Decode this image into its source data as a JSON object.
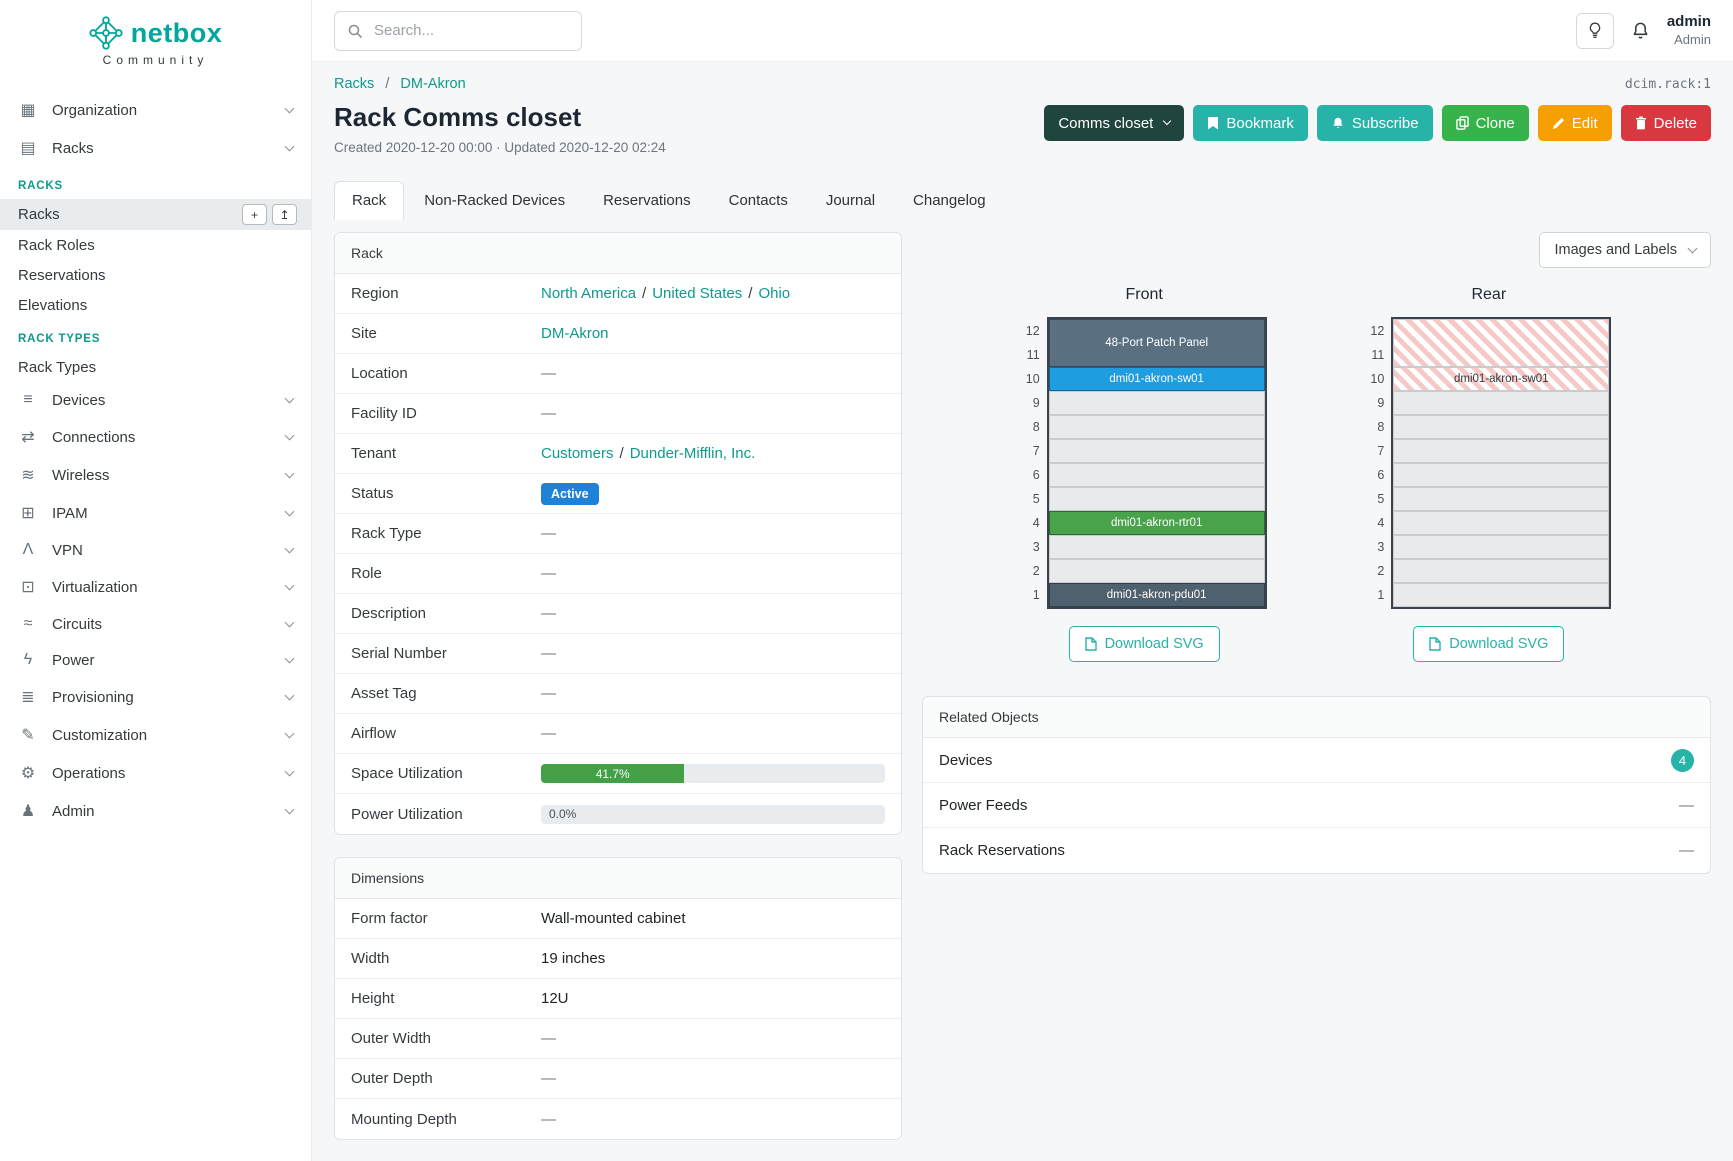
{
  "ui": {
    "slash": "/"
  },
  "colors": {
    "brand": "#00a79b",
    "link": "#0e9a8d",
    "btn-teal": "#27b3a7",
    "btn-green": "#38b24a",
    "btn-orange": "#f59f00",
    "btn-red": "#d8383f",
    "btn-dark": "#20453f",
    "badge-blue": "#1d82d8",
    "progress-green": "#43a047",
    "device-blue": "#1e9de0",
    "device-green": "#48a34b",
    "device-slate": "#5a7080",
    "device-darkslate": "#4f616e",
    "stripe-pink": "#f5cac6"
  },
  "brand": {
    "name": "netbox",
    "subtitle": "Community"
  },
  "topbar": {
    "search_placeholder": "Search...",
    "user_name": "admin",
    "user_role": "Admin"
  },
  "breadcrumb": {
    "items": [
      "Racks",
      "DM-Akron"
    ],
    "object_ref": "dcim.rack:1"
  },
  "page": {
    "title": "Rack Comms closet",
    "meta": "Created 2020-12-20 00:00 · Updated 2020-12-20 02:24"
  },
  "actions": {
    "rack_selector": "Comms closet",
    "bookmark": "Bookmark",
    "subscribe": "Subscribe",
    "clone": "Clone",
    "edit": "Edit",
    "delete": "Delete"
  },
  "tabs": [
    {
      "label": "Rack",
      "active": true
    },
    {
      "label": "Non-Racked Devices"
    },
    {
      "label": "Reservations"
    },
    {
      "label": "Contacts"
    },
    {
      "label": "Journal"
    },
    {
      "label": "Changelog"
    }
  ],
  "sidebar": {
    "add_button": "+",
    "import_button": "↥",
    "top_items": [
      {
        "label": "Organization",
        "glyph": "▦"
      },
      {
        "label": "Racks",
        "glyph": "▤"
      }
    ],
    "groups": [
      {
        "header": "RACKS",
        "items": [
          {
            "label": "Racks",
            "active": true
          },
          {
            "label": "Rack Roles"
          },
          {
            "label": "Reservations"
          },
          {
            "label": "Elevations"
          }
        ]
      },
      {
        "header": "RACK TYPES",
        "items": [
          {
            "label": "Rack Types"
          }
        ]
      }
    ],
    "bottom_items": [
      {
        "label": "Devices",
        "glyph": "≡"
      },
      {
        "label": "Connections",
        "glyph": "⇄"
      },
      {
        "label": "Wireless",
        "glyph": "≋"
      },
      {
        "label": "IPAM",
        "glyph": "⊞"
      },
      {
        "label": "VPN",
        "glyph": "Λ"
      },
      {
        "label": "Virtualization",
        "glyph": "⊡"
      },
      {
        "label": "Circuits",
        "glyph": "≈"
      },
      {
        "label": "Power",
        "glyph": "ϟ"
      },
      {
        "label": "Provisioning",
        "glyph": "≣"
      },
      {
        "label": "Customization",
        "glyph": "✎"
      },
      {
        "label": "Operations",
        "glyph": "⚙"
      },
      {
        "label": "Admin",
        "glyph": "♟"
      }
    ]
  },
  "rack_panel": {
    "title": "Rack",
    "region": {
      "label": "Region",
      "links": [
        "North America",
        "United States",
        "Ohio"
      ]
    },
    "site": {
      "label": "Site",
      "link": "DM-Akron"
    },
    "location": {
      "label": "Location",
      "value": "—"
    },
    "facility_id": {
      "label": "Facility ID",
      "value": "—"
    },
    "tenant": {
      "label": "Tenant",
      "links": [
        "Customers",
        "Dunder-Mifflin, Inc."
      ]
    },
    "status": {
      "label": "Status",
      "badge": "Active"
    },
    "rack_type": {
      "label": "Rack Type",
      "value": "—"
    },
    "role": {
      "label": "Role",
      "value": "—"
    },
    "description": {
      "label": "Description",
      "value": "—"
    },
    "serial_number": {
      "label": "Serial Number",
      "value": "—"
    },
    "asset_tag": {
      "label": "Asset Tag",
      "value": "—"
    },
    "airflow": {
      "label": "Airflow",
      "value": "—"
    },
    "space_utilization": {
      "label": "Space Utilization",
      "percent": 41.7,
      "text": "41.7%"
    },
    "power_utilization": {
      "label": "Power Utilization",
      "percent": 0,
      "text": "0.0%"
    }
  },
  "dimensions_panel": {
    "title": "Dimensions",
    "rows": [
      {
        "label": "Form factor",
        "value": "Wall-mounted cabinet"
      },
      {
        "label": "Width",
        "value": "19 inches"
      },
      {
        "label": "Height",
        "value": "12U"
      },
      {
        "label": "Outer Width",
        "value": "—"
      },
      {
        "label": "Outer Depth",
        "value": "—"
      },
      {
        "label": "Mounting Depth",
        "value": "—"
      }
    ]
  },
  "elevations": {
    "view_selector": "Images and Labels",
    "download_label": "Download SVG",
    "front": {
      "title": "Front",
      "slots": [
        {
          "units": [
            12,
            11
          ],
          "label": "48-Port Patch Panel",
          "style": "slate"
        },
        {
          "units": [
            10
          ],
          "label": "dmi01-akron-sw01",
          "style": "blue"
        },
        {
          "units": [
            9
          ]
        },
        {
          "units": [
            8
          ]
        },
        {
          "units": [
            7
          ]
        },
        {
          "units": [
            6
          ]
        },
        {
          "units": [
            5
          ]
        },
        {
          "units": [
            4
          ],
          "label": "dmi01-akron-rtr01",
          "style": "green"
        },
        {
          "units": [
            3
          ]
        },
        {
          "units": [
            2
          ]
        },
        {
          "units": [
            1
          ],
          "label": "dmi01-akron-pdu01",
          "style": "darkslate"
        }
      ]
    },
    "rear": {
      "title": "Rear",
      "slots": [
        {
          "units": [
            12,
            11
          ],
          "style": "striped"
        },
        {
          "units": [
            10
          ],
          "label": "dmi01-akron-sw01",
          "style": "striped"
        },
        {
          "units": [
            9
          ]
        },
        {
          "units": [
            8
          ]
        },
        {
          "units": [
            7
          ]
        },
        {
          "units": [
            6
          ]
        },
        {
          "units": [
            5
          ]
        },
        {
          "units": [
            4
          ]
        },
        {
          "units": [
            3
          ]
        },
        {
          "units": [
            2
          ]
        },
        {
          "units": [
            1
          ]
        }
      ]
    }
  },
  "related_objects": {
    "title": "Related Objects",
    "rows": [
      {
        "label": "Devices",
        "count": "4"
      },
      {
        "label": "Power Feeds",
        "value": "—"
      },
      {
        "label": "Rack Reservations",
        "value": "—"
      }
    ]
  }
}
